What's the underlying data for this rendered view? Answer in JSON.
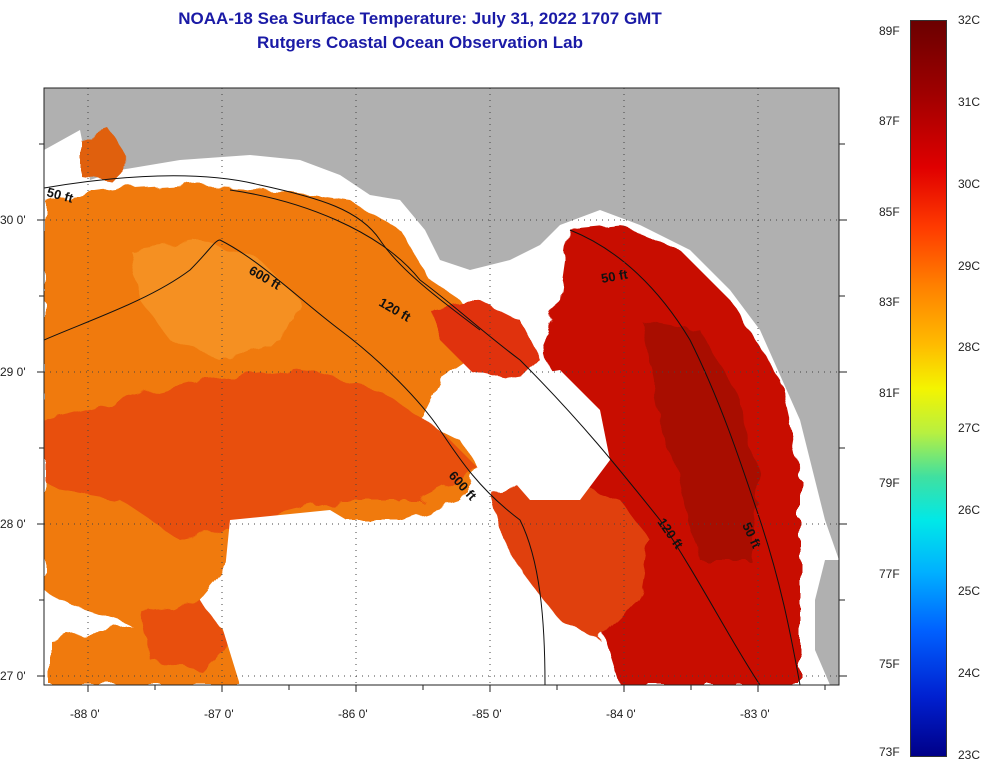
{
  "title_line1": "NOAA-18 Sea Surface Temperature:  July 31, 2022 1707 GMT",
  "title_line2": "Rutgers Coastal Ocean Observation Lab",
  "x_ticks": [
    "-88 0'",
    "-87 0'",
    "-86 0'",
    "-85 0'",
    "-84 0'",
    "-83 0'"
  ],
  "y_ticks": [
    "30 0'",
    "29 0'",
    "28 0'",
    "27 0'"
  ],
  "contours": [
    "50 ft",
    "600 ft",
    "120 ft",
    "50 ft",
    "600 ft",
    "120 ft",
    "50 ft"
  ],
  "colorbar": {
    "fahrenheit": [
      "89F",
      "87F",
      "85F",
      "83F",
      "81F",
      "79F",
      "77F",
      "75F",
      "73F"
    ],
    "celsius": [
      "32C",
      "31C",
      "30C",
      "29C",
      "28C",
      "27C",
      "26C",
      "25C",
      "24C",
      "23C"
    ]
  },
  "colors": {
    "land": "#b0b0b0",
    "title": "#1a1aa6",
    "hot": "#c81000",
    "warm": "#e8500a",
    "orange": "#f07a10"
  }
}
